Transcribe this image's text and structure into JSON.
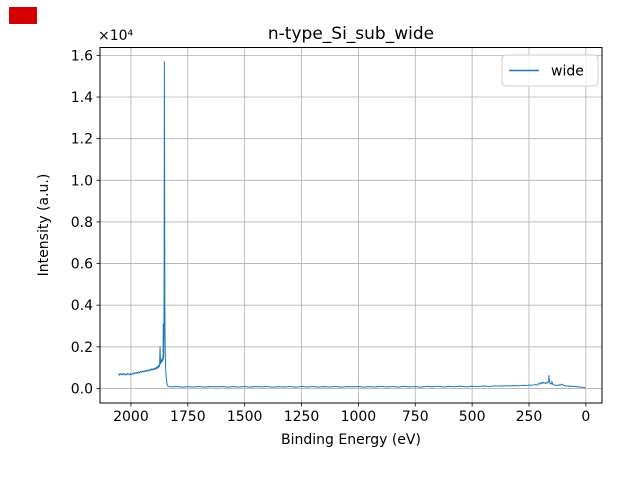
{
  "figure": {
    "title": "n-type_Si_sub_wide",
    "xlabel": "Binding Energy (eV)",
    "ylabel": "Intensity (a.u.)",
    "y_offset_text": "×10⁴",
    "legend": {
      "position": "upper right",
      "entries": [
        {
          "label": "wide",
          "color": "#1f77b4"
        }
      ]
    },
    "colors": {
      "line": "#1f77b4",
      "grid": "#b0b0b0",
      "spine": "#000000",
      "text": "#000000",
      "background": "#ffffff",
      "legend_edge": "#cccccc",
      "red_marker": "#d40000"
    }
  },
  "chart_data": {
    "type": "line",
    "title": "n-type_Si_sub_wide",
    "xlabel": "Binding Energy (eV)",
    "ylabel": "Intensity (a.u.)",
    "y_offset_text": "×10⁴",
    "x_inverted": true,
    "grid": true,
    "legend_position": "upper right",
    "xlim": [
      2136,
      -71
    ],
    "ylim": [
      -700,
      16380
    ],
    "x_ticks": [
      2000,
      1750,
      1500,
      1250,
      1000,
      750,
      500,
      250,
      0
    ],
    "x_tick_labels": [
      "2000",
      "1750",
      "1500",
      "1250",
      "1000",
      "750",
      "500",
      "250",
      "0"
    ],
    "y_ticks": [
      0,
      2000,
      4000,
      6000,
      8000,
      10000,
      12000,
      14000,
      16000
    ],
    "y_tick_labels": [
      "0.0",
      "0.2",
      "0.4",
      "0.6",
      "0.8",
      "1.0",
      "1.2",
      "1.4",
      "1.6"
    ],
    "series": [
      {
        "name": "wide",
        "color": "#1f77b4",
        "points": [
          [
            2055,
            690
          ],
          [
            2051,
            640
          ],
          [
            2048,
            720
          ],
          [
            2044,
            660
          ],
          [
            2040,
            700
          ],
          [
            2036,
            650
          ],
          [
            2033,
            730
          ],
          [
            2029,
            680
          ],
          [
            2025,
            640
          ],
          [
            2021,
            700
          ],
          [
            2018,
            660
          ],
          [
            2014,
            720
          ],
          [
            2010,
            690
          ],
          [
            2006,
            650
          ],
          [
            2002,
            710
          ],
          [
            1998,
            670
          ],
          [
            1994,
            700
          ],
          [
            1990,
            740
          ],
          [
            1986,
            690
          ],
          [
            1982,
            760
          ],
          [
            1978,
            720
          ],
          [
            1974,
            780
          ],
          [
            1970,
            730
          ],
          [
            1966,
            790
          ],
          [
            1962,
            750
          ],
          [
            1958,
            810
          ],
          [
            1954,
            770
          ],
          [
            1950,
            830
          ],
          [
            1946,
            790
          ],
          [
            1942,
            850
          ],
          [
            1938,
            800
          ],
          [
            1934,
            870
          ],
          [
            1930,
            820
          ],
          [
            1926,
            890
          ],
          [
            1922,
            840
          ],
          [
            1918,
            910
          ],
          [
            1914,
            860
          ],
          [
            1910,
            940
          ],
          [
            1906,
            880
          ],
          [
            1902,
            960
          ],
          [
            1898,
            900
          ],
          [
            1894,
            980
          ],
          [
            1891,
            920
          ],
          [
            1888,
            1020
          ],
          [
            1885,
            950
          ],
          [
            1882,
            1080
          ],
          [
            1879,
            1000
          ],
          [
            1876,
            1150
          ],
          [
            1874,
            1060
          ],
          [
            1872,
            2000
          ],
          [
            1870,
            1180
          ],
          [
            1868,
            1350
          ],
          [
            1866,
            1250
          ],
          [
            1864,
            1420
          ],
          [
            1862,
            1300
          ],
          [
            1860,
            1500
          ],
          [
            1859,
            1380
          ],
          [
            1858,
            3100
          ],
          [
            1857,
            1450
          ],
          [
            1856,
            1600
          ],
          [
            1855,
            2400
          ],
          [
            1854,
            6000
          ],
          [
            1853,
            15700
          ],
          [
            1852,
            11000
          ],
          [
            1851,
            4500
          ],
          [
            1850,
            2600
          ],
          [
            1849,
            1700
          ],
          [
            1848,
            1100
          ],
          [
            1846,
            700
          ],
          [
            1844,
            420
          ],
          [
            1842,
            260
          ],
          [
            1840,
            170
          ],
          [
            1837,
            110
          ],
          [
            1834,
            90
          ],
          [
            1825,
            75
          ],
          [
            1800,
            95
          ],
          [
            1775,
            60
          ],
          [
            1750,
            85
          ],
          [
            1725,
            70
          ],
          [
            1700,
            95
          ],
          [
            1675,
            65
          ],
          [
            1650,
            90
          ],
          [
            1625,
            75
          ],
          [
            1600,
            95
          ],
          [
            1575,
            60
          ],
          [
            1550,
            85
          ],
          [
            1525,
            70
          ],
          [
            1500,
            90
          ],
          [
            1475,
            65
          ],
          [
            1450,
            95
          ],
          [
            1425,
            75
          ],
          [
            1400,
            90
          ],
          [
            1375,
            60
          ],
          [
            1350,
            85
          ],
          [
            1325,
            70
          ],
          [
            1300,
            95
          ],
          [
            1275,
            65
          ],
          [
            1250,
            90
          ],
          [
            1225,
            70
          ],
          [
            1200,
            95
          ],
          [
            1175,
            60
          ],
          [
            1150,
            85
          ],
          [
            1125,
            70
          ],
          [
            1100,
            95
          ],
          [
            1075,
            65
          ],
          [
            1050,
            90
          ],
          [
            1025,
            75
          ],
          [
            1000,
            95
          ],
          [
            975,
            60
          ],
          [
            950,
            85
          ],
          [
            925,
            70
          ],
          [
            900,
            100
          ],
          [
            875,
            70
          ],
          [
            850,
            95
          ],
          [
            825,
            65
          ],
          [
            800,
            100
          ],
          [
            775,
            75
          ],
          [
            750,
            95
          ],
          [
            725,
            65
          ],
          [
            700,
            100
          ],
          [
            675,
            75
          ],
          [
            650,
            105
          ],
          [
            625,
            70
          ],
          [
            600,
            100
          ],
          [
            575,
            80
          ],
          [
            550,
            110
          ],
          [
            525,
            75
          ],
          [
            500,
            105
          ],
          [
            475,
            85
          ],
          [
            450,
            115
          ],
          [
            425,
            90
          ],
          [
            400,
            120
          ],
          [
            380,
            110
          ],
          [
            360,
            130
          ],
          [
            340,
            115
          ],
          [
            320,
            140
          ],
          [
            300,
            125
          ],
          [
            280,
            150
          ],
          [
            260,
            140
          ],
          [
            245,
            165
          ],
          [
            235,
            150
          ],
          [
            225,
            185
          ],
          [
            215,
            160
          ],
          [
            208,
            240
          ],
          [
            203,
            200
          ],
          [
            198,
            290
          ],
          [
            193,
            230
          ],
          [
            188,
            300
          ],
          [
            184,
            250
          ],
          [
            180,
            270
          ],
          [
            176,
            235
          ],
          [
            172,
            290
          ],
          [
            168,
            260
          ],
          [
            164,
            330
          ],
          [
            162,
            620
          ],
          [
            160,
            300
          ],
          [
            156,
            230
          ],
          [
            152,
            210
          ],
          [
            149,
            330
          ],
          [
            146,
            200
          ],
          [
            142,
            175
          ],
          [
            138,
            160
          ],
          [
            132,
            145
          ],
          [
            126,
            160
          ],
          [
            120,
            140
          ],
          [
            114,
            185
          ],
          [
            110,
            160
          ],
          [
            105,
            210
          ],
          [
            101,
            175
          ],
          [
            97,
            150
          ],
          [
            92,
            130
          ],
          [
            86,
            120
          ],
          [
            80,
            110
          ],
          [
            74,
            115
          ],
          [
            68,
            100
          ],
          [
            62,
            105
          ],
          [
            56,
            90
          ],
          [
            50,
            95
          ],
          [
            44,
            80
          ],
          [
            38,
            85
          ],
          [
            32,
            70
          ],
          [
            26,
            75
          ],
          [
            20,
            60
          ],
          [
            14,
            55
          ],
          [
            8,
            45
          ],
          [
            4,
            30
          ],
          [
            1,
            22
          ]
        ]
      }
    ]
  }
}
